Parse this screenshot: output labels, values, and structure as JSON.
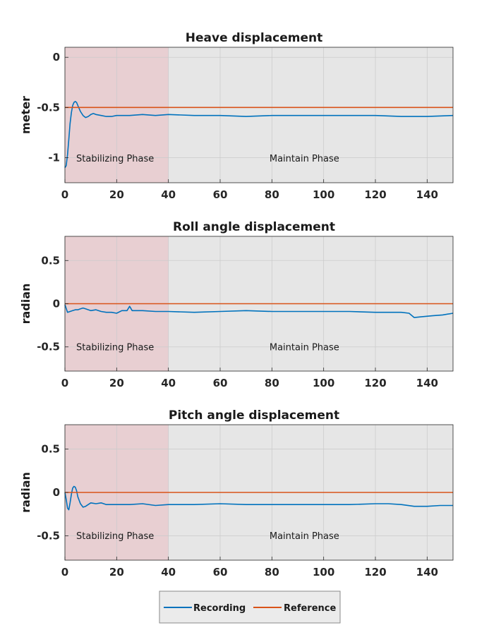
{
  "colors": {
    "recording": "#0072BD",
    "reference": "#D95319",
    "stabilizing_shade": "#E8CFD2",
    "maintain_shade": "#E6E6E6",
    "grid": "#CCCCCC"
  },
  "legend": {
    "recording_label": "Recording",
    "reference_label": "Reference",
    "placement": "bottom-center"
  },
  "chart_data": [
    {
      "type": "line",
      "title": "Heave displacement",
      "xlabel": "",
      "ylabel": "meter",
      "xlim": [
        0,
        150
      ],
      "ylim": [
        -1.25,
        0.1
      ],
      "xticks": [
        0,
        20,
        40,
        60,
        80,
        100,
        120,
        140
      ],
      "yticks": [
        0,
        -0.5,
        -1
      ],
      "ytick_labels": [
        "0",
        "-0.5",
        "-1"
      ],
      "grid": true,
      "phases": [
        {
          "label": "Stabilizing Phase",
          "x_range": [
            0,
            40
          ]
        },
        {
          "label": "Maintain Phase",
          "x_range": [
            40,
            150
          ]
        }
      ],
      "series": [
        {
          "name": "Recording",
          "x": [
            0,
            0.5,
            1,
            1.5,
            2,
            2.5,
            3,
            3.5,
            4,
            4.5,
            5,
            6,
            7,
            8,
            9,
            10,
            11,
            12,
            14,
            16,
            18,
            20,
            25,
            30,
            35,
            40,
            50,
            60,
            70,
            80,
            90,
            100,
            110,
            120,
            130,
            140,
            150
          ],
          "y": [
            -1.1,
            -1.08,
            -0.97,
            -0.82,
            -0.66,
            -0.55,
            -0.48,
            -0.45,
            -0.44,
            -0.45,
            -0.48,
            -0.54,
            -0.58,
            -0.6,
            -0.59,
            -0.57,
            -0.56,
            -0.57,
            -0.58,
            -0.59,
            -0.59,
            -0.58,
            -0.58,
            -0.57,
            -0.58,
            -0.57,
            -0.58,
            -0.58,
            -0.59,
            -0.58,
            -0.58,
            -0.58,
            -0.58,
            -0.58,
            -0.59,
            -0.59,
            -0.58
          ]
        },
        {
          "name": "Reference",
          "x": [
            0,
            150
          ],
          "y": [
            -0.5,
            -0.5
          ]
        }
      ]
    },
    {
      "type": "line",
      "title": "Roll angle displacement",
      "xlabel": "",
      "ylabel": "radian",
      "xlim": [
        0,
        150
      ],
      "ylim": [
        -0.78,
        0.78
      ],
      "xticks": [
        0,
        20,
        40,
        60,
        80,
        100,
        120,
        140
      ],
      "yticks": [
        0.5,
        0,
        -0.5
      ],
      "ytick_labels": [
        "0.5",
        "0",
        "-0.5"
      ],
      "grid": true,
      "phases": [
        {
          "label": "Stabilizing Phase",
          "x_range": [
            0,
            40
          ]
        },
        {
          "label": "Maintain Phase",
          "x_range": [
            40,
            150
          ]
        }
      ],
      "series": [
        {
          "name": "Recording",
          "x": [
            0,
            1,
            2,
            3,
            4,
            5,
            6,
            7,
            8,
            10,
            12,
            14,
            16,
            18,
            20,
            22,
            24,
            25,
            26,
            28,
            30,
            35,
            40,
            50,
            60,
            70,
            80,
            90,
            100,
            110,
            120,
            130,
            133,
            135,
            138,
            142,
            146,
            150
          ],
          "y": [
            -0.01,
            -0.1,
            -0.09,
            -0.08,
            -0.07,
            -0.07,
            -0.06,
            -0.05,
            -0.06,
            -0.08,
            -0.07,
            -0.09,
            -0.1,
            -0.1,
            -0.11,
            -0.08,
            -0.08,
            -0.03,
            -0.08,
            -0.08,
            -0.08,
            -0.09,
            -0.09,
            -0.1,
            -0.09,
            -0.08,
            -0.09,
            -0.09,
            -0.09,
            -0.09,
            -0.1,
            -0.1,
            -0.11,
            -0.16,
            -0.15,
            -0.14,
            -0.13,
            -0.11
          ]
        },
        {
          "name": "Reference",
          "x": [
            0,
            150
          ],
          "y": [
            0,
            0
          ]
        }
      ]
    },
    {
      "type": "line",
      "title": "Pitch angle displacement",
      "xlabel": "",
      "ylabel": "radian",
      "xlim": [
        0,
        150
      ],
      "ylim": [
        -0.78,
        0.78
      ],
      "xticks": [
        0,
        20,
        40,
        60,
        80,
        100,
        120,
        140
      ],
      "yticks": [
        0.5,
        0,
        -0.5
      ],
      "ytick_labels": [
        "0.5",
        "0",
        "-0.5"
      ],
      "grid": true,
      "phases": [
        {
          "label": "Stabilizing Phase",
          "x_range": [
            0,
            40
          ]
        },
        {
          "label": "Maintain Phase",
          "x_range": [
            40,
            150
          ]
        }
      ],
      "series": [
        {
          "name": "Recording",
          "x": [
            0,
            0.5,
            1,
            1.5,
            2,
            2.5,
            3,
            3.5,
            4,
            4.5,
            5,
            6,
            7,
            8,
            9,
            10,
            12,
            14,
            16,
            18,
            20,
            25,
            30,
            35,
            40,
            50,
            60,
            70,
            80,
            90,
            100,
            110,
            120,
            125,
            130,
            135,
            140,
            145,
            150
          ],
          "y": [
            0.0,
            -0.08,
            -0.18,
            -0.2,
            -0.12,
            -0.02,
            0.05,
            0.07,
            0.06,
            0.02,
            -0.05,
            -0.13,
            -0.17,
            -0.16,
            -0.14,
            -0.12,
            -0.13,
            -0.12,
            -0.14,
            -0.14,
            -0.14,
            -0.14,
            -0.13,
            -0.15,
            -0.14,
            -0.14,
            -0.13,
            -0.14,
            -0.14,
            -0.14,
            -0.14,
            -0.14,
            -0.13,
            -0.13,
            -0.14,
            -0.16,
            -0.16,
            -0.15,
            -0.15
          ]
        },
        {
          "name": "Reference",
          "x": [
            0,
            150
          ],
          "y": [
            0,
            0
          ]
        }
      ]
    }
  ]
}
